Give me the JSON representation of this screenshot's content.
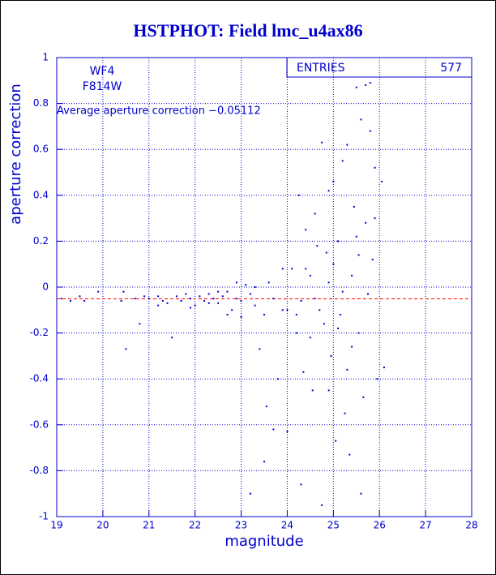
{
  "chart_data": {
    "type": "scatter",
    "title": "HSTPHOT: Field lmc_u4ax86",
    "x_label": "magnitude",
    "y_label": "aperture correction",
    "annotations": [
      "WF4",
      "F814W",
      "Average aperture correction −0.05112"
    ],
    "mean": -0.05112,
    "entries_label": "ENTRIES",
    "entries": 577,
    "xlim": [
      19,
      28
    ],
    "ylim": [
      -1,
      1
    ],
    "xticks": [
      19,
      20,
      21,
      22,
      23,
      24,
      25,
      26,
      27,
      28
    ],
    "yticks": [
      -1,
      -0.8,
      -0.6,
      -0.4,
      -0.2,
      0,
      0.2,
      0.4,
      0.6,
      0.8,
      1
    ],
    "grid": true,
    "color": "#0000cc",
    "mean_color": "#ff0000",
    "x": [
      19.1,
      19.3,
      19.5,
      19.6,
      19.9,
      20.4,
      20.5,
      20.45,
      20.7,
      20.8,
      20.9,
      21.0,
      21.2,
      21.3,
      21.4,
      21.5,
      21.6,
      21.7,
      21.8,
      21.9,
      22.0,
      22.1,
      22.2,
      22.3,
      22.4,
      22.5,
      22.6,
      22.7,
      22.8,
      22.9,
      23.0,
      23.1,
      23.2,
      23.3,
      23.4,
      23.5,
      23.6,
      23.7,
      23.8,
      23.9,
      23.55,
      23.2,
      23.5,
      23.7,
      24.0,
      24.1,
      24.2,
      24.25,
      24.3,
      24.35,
      24.4,
      24.5,
      24.55,
      24.6,
      24.7,
      24.75,
      24.8,
      24.85,
      24.9,
      24.95,
      25.0,
      25.05,
      25.1,
      25.15,
      25.2,
      25.25,
      25.3,
      25.35,
      25.4,
      25.45,
      25.5,
      25.55,
      25.6,
      25.65,
      25.7,
      25.75,
      25.8,
      25.85,
      25.9,
      25.95,
      26.05,
      26.1,
      25.55,
      25.3,
      24.9,
      24.6,
      24.3,
      24.75,
      25.7,
      25.8,
      24.4,
      24.2,
      24.5,
      24.0,
      23.9,
      25.0,
      25.2,
      25.5,
      25.9,
      25.6,
      25.1,
      24.65,
      24.9,
      25.4,
      22.9,
      22.5,
      23.3,
      23.0,
      22.7,
      22.3,
      21.9,
      21.2
    ],
    "y": [
      -0.05,
      -0.06,
      -0.04,
      -0.06,
      -0.02,
      -0.06,
      -0.27,
      -0.02,
      -0.05,
      -0.16,
      -0.04,
      -0.05,
      -0.04,
      -0.06,
      -0.07,
      -0.22,
      -0.04,
      -0.06,
      -0.03,
      -0.05,
      -0.08,
      -0.04,
      -0.06,
      -0.03,
      -0.05,
      -0.07,
      -0.04,
      -0.02,
      -0.1,
      -0.05,
      -0.06,
      0.01,
      -0.03,
      -0.08,
      -0.27,
      -0.12,
      0.02,
      -0.05,
      -0.4,
      -0.1,
      -0.52,
      -0.9,
      -0.76,
      -0.62,
      -0.63,
      0.08,
      -0.2,
      0.4,
      -0.06,
      -0.37,
      0.25,
      0.05,
      -0.45,
      0.32,
      -0.1,
      0.63,
      -0.16,
      0.15,
      0.42,
      -0.3,
      0.46,
      -0.67,
      0.2,
      -0.12,
      0.55,
      -0.55,
      0.62,
      -0.73,
      0.05,
      0.35,
      0.87,
      -0.2,
      0.73,
      -0.48,
      0.28,
      -0.03,
      0.68,
      0.12,
      0.52,
      -0.4,
      0.46,
      -0.35,
      0.14,
      -0.36,
      0.02,
      -0.05,
      -0.86,
      -0.95,
      0.88,
      0.89,
      0.08,
      -0.12,
      -0.22,
      -0.1,
      0.08,
      0.1,
      -0.02,
      0.22,
      0.3,
      -0.9,
      -0.18,
      0.18,
      -0.45,
      -0.26,
      0.02,
      -0.02,
      0.0,
      -0.13,
      -0.12,
      -0.07,
      -0.09,
      -0.08
    ]
  }
}
